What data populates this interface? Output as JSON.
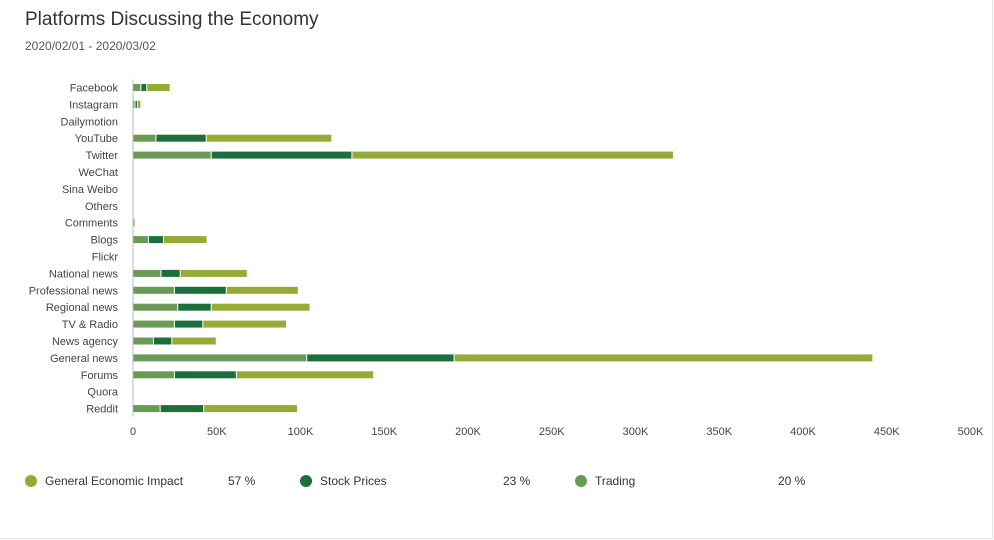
{
  "header": {
    "title": "Platforms Discussing the Economy",
    "date_range": "2020/02/01 - 2020/03/02"
  },
  "colors": {
    "general_economic_impact": "#95ab37",
    "stock_prices": "#1c6f3c",
    "trading": "#6a9a55",
    "axis": "#999999"
  },
  "legend": [
    {
      "name": "General Economic Impact",
      "percent": "57 %",
      "color": "#95ab37"
    },
    {
      "name": "Stock Prices",
      "percent": "23 %",
      "color": "#1c6f3c"
    },
    {
      "name": "Trading",
      "percent": "20 %",
      "color": "#6a9a55"
    }
  ],
  "chart_data": {
    "type": "bar",
    "orientation": "horizontal",
    "stacked": true,
    "title": "Platforms Discussing the Economy",
    "subtitle": "2020/02/01 - 2020/03/02",
    "categories": [
      "Facebook",
      "Instagram",
      "Dailymotion",
      "YouTube",
      "Twitter",
      "WeChat",
      "Sina Weibo",
      "Others",
      "Comments",
      "Blogs",
      "Flickr",
      "National news",
      "Professional news",
      "Regional news",
      "TV & Radio",
      "News agency",
      "General news",
      "Forums",
      "Quora",
      "Reddit"
    ],
    "series": [
      {
        "name": "Trading",
        "color": "#6a9a55",
        "values": [
          5000,
          1500,
          0,
          14000,
          47000,
          0,
          0,
          0,
          500,
          9500,
          0,
          17000,
          25000,
          27000,
          25000,
          12500,
          104000,
          25000,
          0,
          16500
        ]
      },
      {
        "name": "Stock Prices",
        "color": "#1c6f3c",
        "values": [
          3500,
          1500,
          0,
          30000,
          84000,
          0,
          0,
          0,
          0,
          9000,
          0,
          11500,
          31000,
          20000,
          17000,
          11000,
          88000,
          37000,
          0,
          26000
        ]
      },
      {
        "name": "General Economic Impact",
        "color": "#95ab37",
        "values": [
          14000,
          2000,
          0,
          75000,
          192000,
          0,
          0,
          0,
          1000,
          26000,
          0,
          40000,
          43000,
          59000,
          50000,
          26500,
          250000,
          82000,
          0,
          56000
        ]
      }
    ],
    "xticks": [
      "0",
      "50K",
      "100K",
      "150K",
      "200K",
      "250K",
      "300K",
      "350K",
      "400K",
      "450K",
      "500K"
    ],
    "xlim": [
      0,
      490000
    ],
    "legend_position": "bottom"
  }
}
